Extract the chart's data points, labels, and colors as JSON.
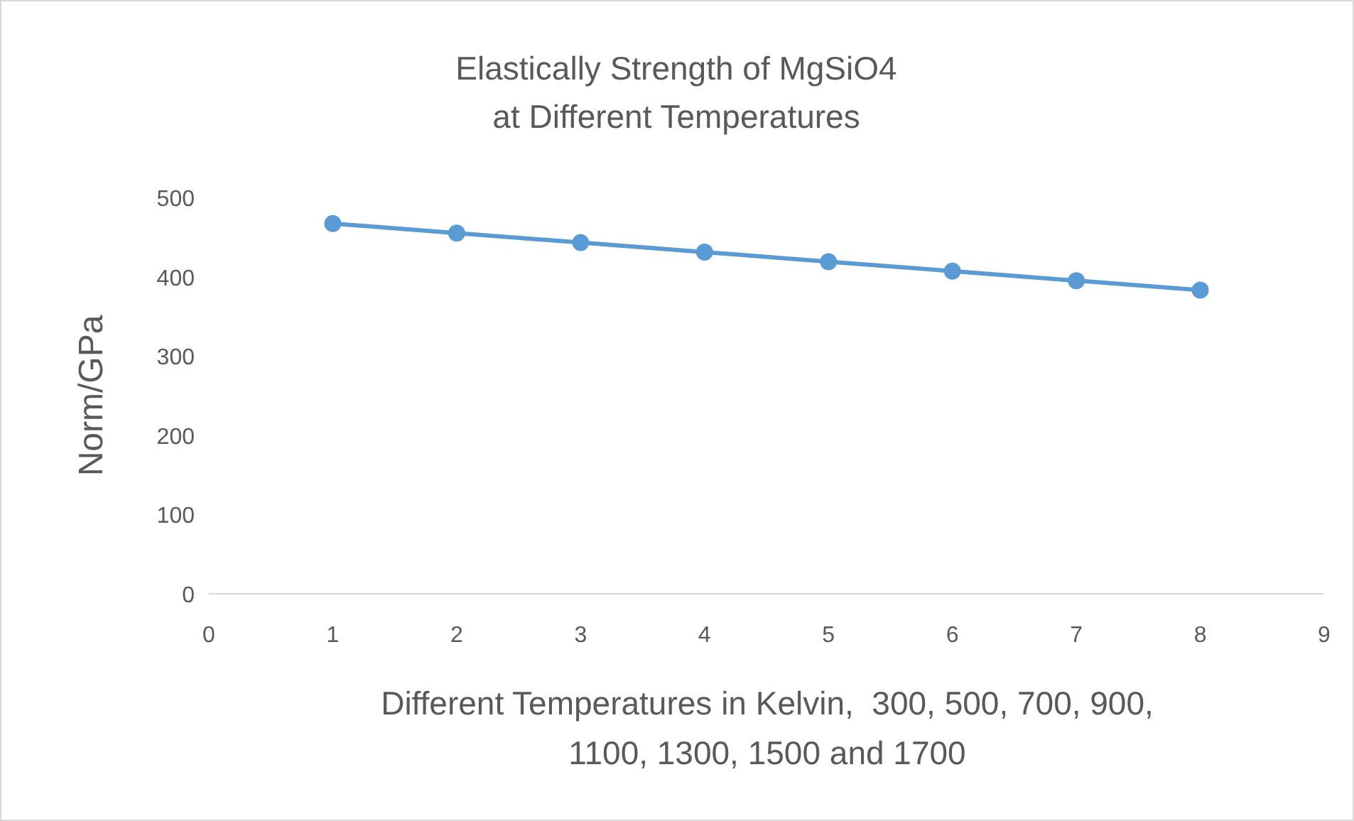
{
  "chart_data": {
    "type": "line",
    "title": "Elastically Strength of MgSiO4 at Different Temperatures",
    "xlabel": "Different Temperatures in Kelvin,  300, 500, 700, 900, 1100, 1300, 1500 and 1700",
    "ylabel": "Norm/GPa",
    "x": [
      1,
      2,
      3,
      4,
      5,
      6,
      7,
      8
    ],
    "series": [
      {
        "color": "#5b9bd5",
        "values": [
          467,
          455,
          443,
          431,
          419,
          407,
          395,
          383
        ]
      }
    ],
    "xlim": [
      0,
      9
    ],
    "xticks": [
      0,
      1,
      2,
      3,
      4,
      5,
      6,
      7,
      8,
      9
    ],
    "ylim": [
      0,
      500
    ],
    "yticks": [
      0,
      100,
      200,
      300,
      400,
      500
    ],
    "grid": false,
    "marker": "circle",
    "line_style": "solid"
  }
}
